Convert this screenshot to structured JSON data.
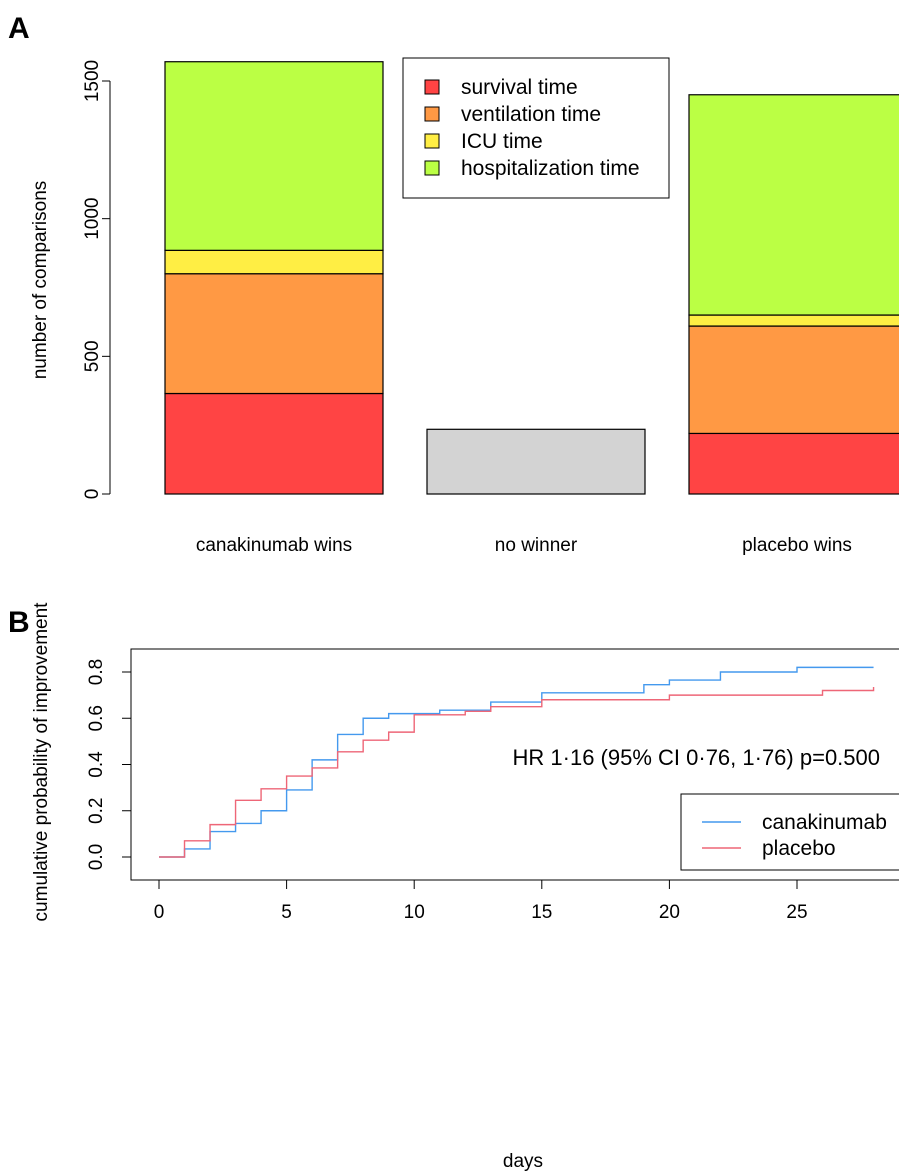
{
  "chart_data": [
    {
      "panel": "A",
      "type": "bar",
      "stacked": true,
      "ylabel": "number of comparisons",
      "xlabel": "",
      "ylim": [
        0,
        1570
      ],
      "yticks": [
        0,
        500,
        1000,
        1500
      ],
      "categories": [
        "canakinumab wins",
        "no winner",
        "placebo wins"
      ],
      "series": [
        {
          "name": "survival time",
          "color": "#ff4444",
          "values": [
            365,
            0,
            220
          ]
        },
        {
          "name": "ventilation time",
          "color": "#ff9944",
          "values": [
            435,
            0,
            390
          ]
        },
        {
          "name": "ICU time",
          "color": "#ffee44",
          "values": [
            85,
            0,
            40
          ]
        },
        {
          "name": "hospitalization time",
          "color": "#bbff44",
          "values": [
            685,
            0,
            800
          ]
        },
        {
          "name": "",
          "color": "#d3d3d3",
          "values": [
            0,
            235,
            0
          ]
        }
      ],
      "legend": {
        "position": "top-center",
        "entries": [
          "survival time",
          "ventilation time",
          "ICU time",
          "hospitalization time"
        ]
      },
      "grid": false
    },
    {
      "panel": "B",
      "type": "line",
      "step": true,
      "xlabel": "days",
      "ylabel": "cumulative probability of improvement",
      "xlim": [
        0,
        28
      ],
      "ylim": [
        0,
        0.82
      ],
      "xticks": [
        0,
        5,
        10,
        15,
        20,
        25
      ],
      "yticks": [
        0.0,
        0.2,
        0.4,
        0.6,
        0.8
      ],
      "annotation": "HR 1·16 (95% CI 0·76, 1·76) p=0.500",
      "legend": {
        "position": "bottom-right",
        "entries": [
          "canakinumab",
          "placebo"
        ]
      },
      "grid": false,
      "series": [
        {
          "name": "canakinumab",
          "color": "#4499ee",
          "x": [
            0,
            1,
            2,
            3,
            4,
            5,
            6,
            7,
            8,
            9,
            11,
            13,
            15,
            19,
            20,
            22,
            25,
            28
          ],
          "y": [
            0,
            0.035,
            0.11,
            0.145,
            0.2,
            0.29,
            0.42,
            0.53,
            0.6,
            0.62,
            0.635,
            0.67,
            0.71,
            0.745,
            0.765,
            0.8,
            0.82,
            0.82
          ]
        },
        {
          "name": "placebo",
          "color": "#ee6677",
          "x": [
            0,
            1,
            2,
            3,
            4,
            5,
            6,
            7,
            8,
            9,
            10,
            12,
            13,
            15,
            20,
            26,
            28
          ],
          "y": [
            0,
            0.07,
            0.14,
            0.245,
            0.295,
            0.35,
            0.385,
            0.455,
            0.505,
            0.54,
            0.615,
            0.63,
            0.65,
            0.68,
            0.7,
            0.72,
            0.735
          ]
        }
      ]
    }
  ],
  "panels": {
    "a_label": "A",
    "b_label": "B"
  }
}
